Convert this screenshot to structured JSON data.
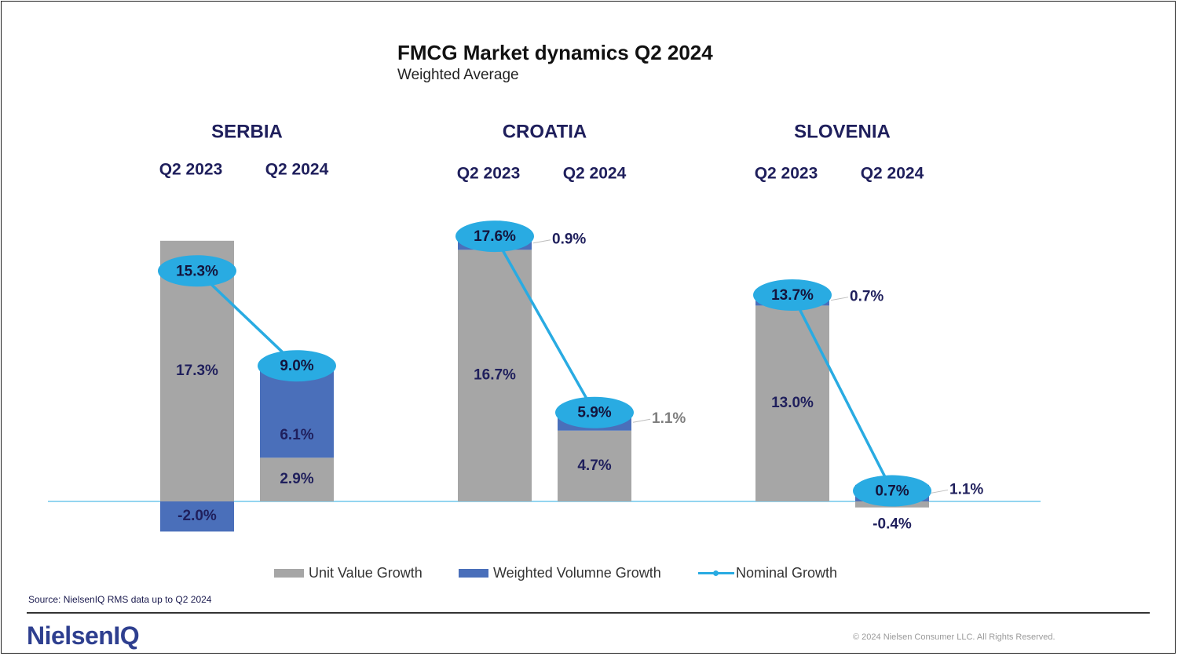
{
  "title": "FMCG Market dynamics Q2 2024",
  "subtitle": "Weighted Average",
  "source": "Source: NielsenIQ RMS data up to Q2 2024",
  "logo": "NielsenIQ",
  "copyright": "© 2024 Nielsen Consumer LLC. All Rights Reserved.",
  "legend": {
    "unit_value": "Unit Value Growth",
    "weighted_volume": "Weighted Volumne Growth",
    "nominal": "Nominal Growth"
  },
  "colors": {
    "unit_value": "#a6a6a6",
    "weighted_volume": "#4a6fba",
    "nominal": "#29abe2",
    "label_text": "#1f1f5c"
  },
  "chart_data": {
    "type": "bar",
    "stacked": true,
    "unit": "%",
    "legend_position": "bottom",
    "groups": [
      {
        "country": "SERBIA",
        "periods": [
          {
            "period": "Q2 2023",
            "unit_value_growth": 17.3,
            "weighted_volume_growth": -2.0,
            "nominal_growth": 15.3,
            "labels": {
              "unit_value": "17.3%",
              "weighted_volume": "-2.0%",
              "nominal": "15.3%"
            }
          },
          {
            "period": "Q2 2024",
            "unit_value_growth": 2.9,
            "weighted_volume_growth": 6.1,
            "nominal_growth": 9.0,
            "labels": {
              "unit_value": "2.9%",
              "weighted_volume": "6.1%",
              "nominal": "9.0%"
            }
          }
        ]
      },
      {
        "country": "CROATIA",
        "periods": [
          {
            "period": "Q2 2023",
            "unit_value_growth": 16.7,
            "weighted_volume_growth": 0.9,
            "nominal_growth": 17.6,
            "labels": {
              "unit_value": "16.7%",
              "weighted_volume": "0.9%",
              "nominal": "17.6%"
            }
          },
          {
            "period": "Q2 2024",
            "unit_value_growth": 4.7,
            "weighted_volume_growth": 1.1,
            "nominal_growth": 5.9,
            "labels": {
              "unit_value": "4.7%",
              "weighted_volume": "1.1%",
              "nominal": "5.9%"
            }
          }
        ]
      },
      {
        "country": "SLOVENIA",
        "periods": [
          {
            "period": "Q2 2023",
            "unit_value_growth": 13.0,
            "weighted_volume_growth": 0.7,
            "nominal_growth": 13.7,
            "labels": {
              "unit_value": "13.0%",
              "weighted_volume": "0.7%",
              "nominal": "13.7%"
            }
          },
          {
            "period": "Q2 2024",
            "unit_value_growth": -0.4,
            "weighted_volume_growth": 1.1,
            "nominal_growth": 0.7,
            "labels": {
              "unit_value": "-0.4%",
              "weighted_volume": "1.1%",
              "nominal": "0.7%"
            }
          }
        ]
      }
    ]
  }
}
